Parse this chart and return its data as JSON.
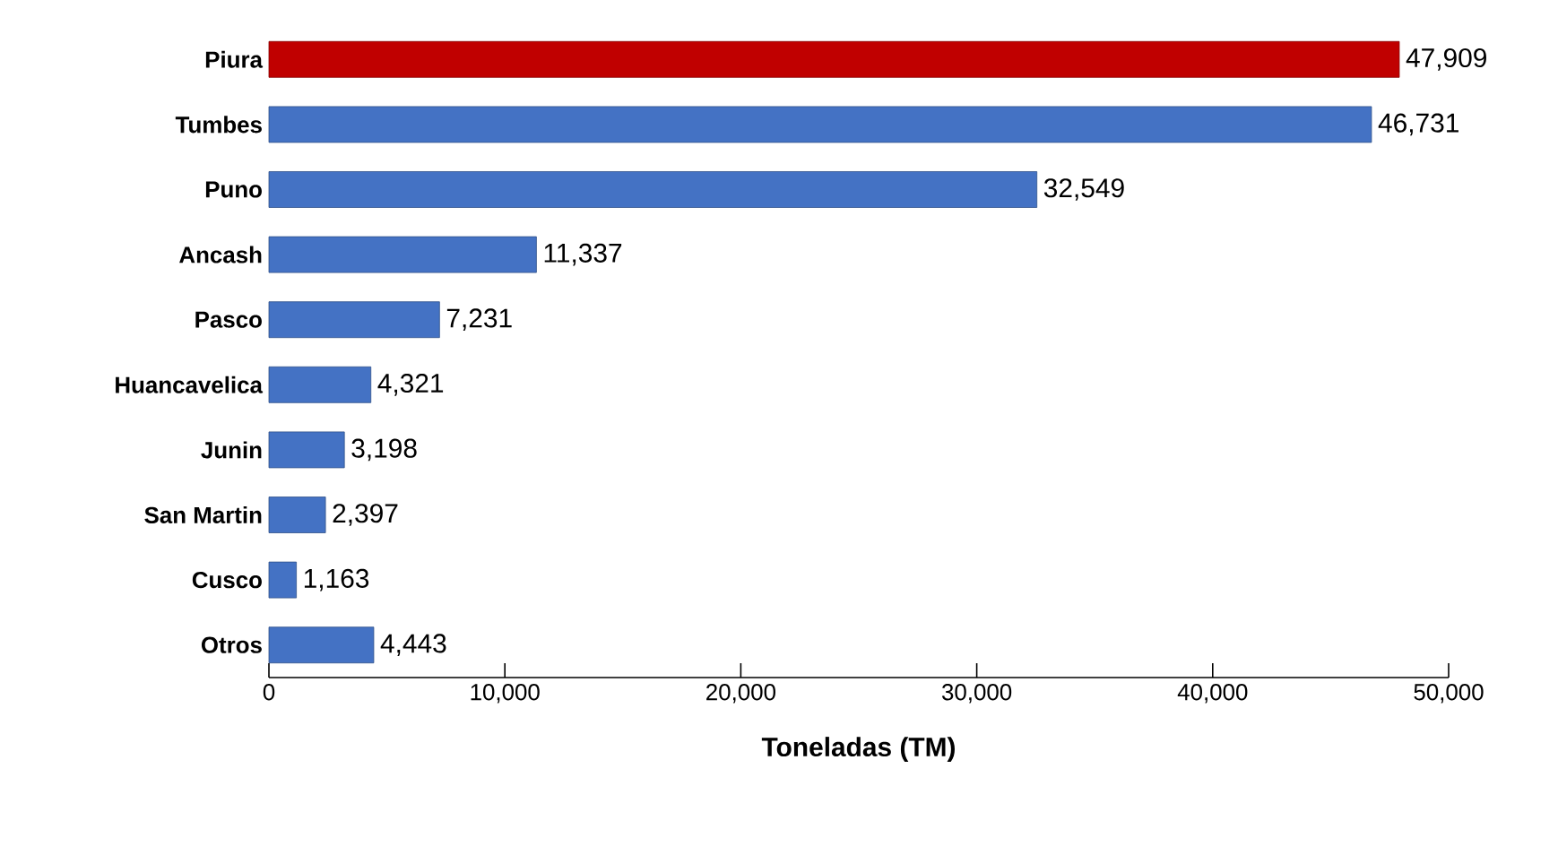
{
  "chart_data": {
    "type": "bar",
    "orientation": "horizontal",
    "xlabel": "Toneladas (TM)",
    "categories": [
      "Piura",
      "Tumbes",
      "Puno",
      "Ancash",
      "Pasco",
      "Huancavelica",
      "Junin",
      "San Martin",
      "Cusco",
      "Otros"
    ],
    "values": [
      47909,
      46731,
      32549,
      11337,
      7231,
      4321,
      3198,
      2397,
      1163,
      4443
    ],
    "colors": [
      "#c00000",
      "#4472c4",
      "#4472c4",
      "#4472c4",
      "#4472c4",
      "#4472c4",
      "#4472c4",
      "#4472c4",
      "#4472c4",
      "#4472c4"
    ],
    "value_labels": [
      "47,909",
      "46,731",
      "32,549",
      "11,337",
      "7,231",
      "4,321",
      "3,198",
      "2,397",
      "1,163",
      "4,443"
    ],
    "xlim": [
      0,
      50000
    ],
    "xticks": [
      0,
      {
        "value": 10000,
        "label": "10,000"
      },
      {
        "value": 20000,
        "label": "20,000"
      },
      {
        "value": 30000,
        "label": "30,000"
      },
      {
        "value": 40000,
        "label": "40,000"
      },
      {
        "value": 50000,
        "label": "50,000"
      }
    ],
    "grid": false
  }
}
